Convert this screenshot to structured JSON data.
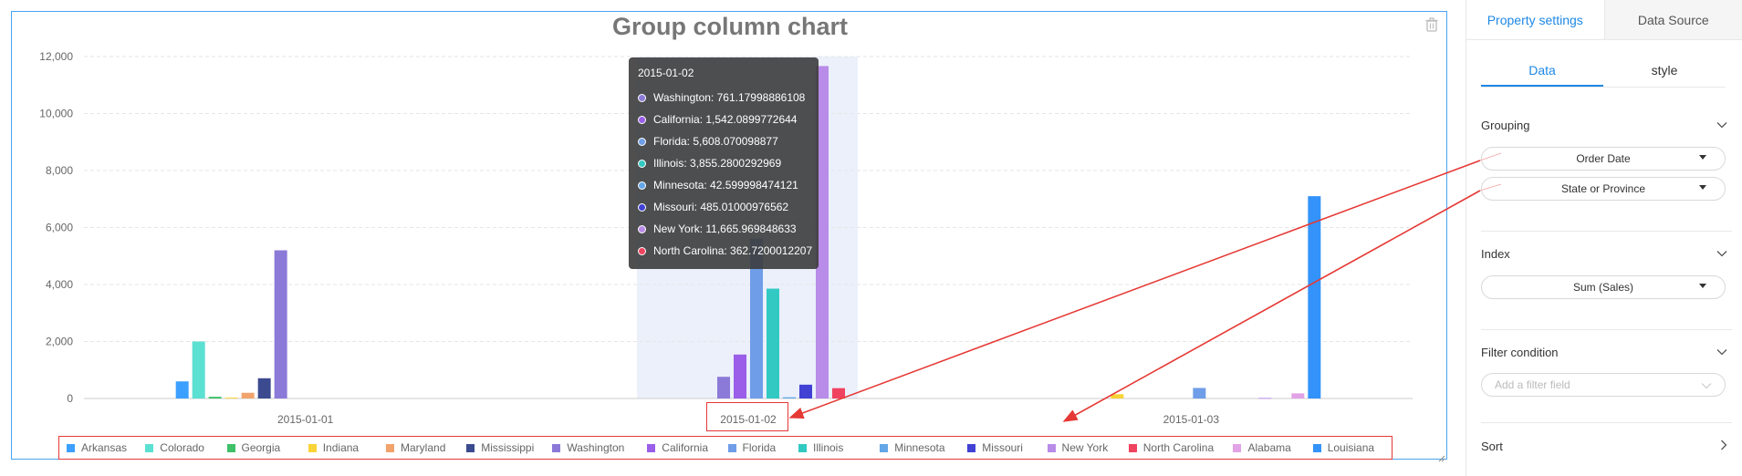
{
  "chart_data": {
    "type": "bar",
    "title": "Group column chart",
    "categories": [
      "2015-01-01",
      "2015-01-02",
      "2015-01-03"
    ],
    "ylim": [
      0,
      12000
    ],
    "yticks": [
      "0",
      "2,000",
      "4,000",
      "6,000",
      "8,000",
      "10,000",
      "12,000"
    ],
    "grid": true,
    "legend_position": "bottom",
    "series": [
      {
        "name": "Arkansas",
        "color": "#3ba0ff",
        "values": [
          600,
          0,
          0
        ]
      },
      {
        "name": "Colorado",
        "color": "#5ce0d2",
        "values": [
          2000,
          0,
          0
        ]
      },
      {
        "name": "Georgia",
        "color": "#3fc06a",
        "values": [
          60,
          0,
          0
        ]
      },
      {
        "name": "Indiana",
        "color": "#fad337",
        "values": [
          30,
          0,
          150
        ]
      },
      {
        "name": "Maryland",
        "color": "#f2a36b",
        "values": [
          200,
          0,
          0
        ]
      },
      {
        "name": "Mississippi",
        "color": "#3c4b8f",
        "values": [
          710,
          0,
          0
        ]
      },
      {
        "name": "Washington",
        "color": "#8b7ad8",
        "values": [
          5200,
          761.17998886108,
          0
        ]
      },
      {
        "name": "California",
        "color": "#9a5ee8",
        "values": [
          0,
          1542.0899772644,
          0
        ]
      },
      {
        "name": "Florida",
        "color": "#6f9de8",
        "values": [
          0,
          5608.070098877,
          370
        ]
      },
      {
        "name": "Illinois",
        "color": "#32c9c2",
        "values": [
          0,
          3855.2800292969,
          0
        ]
      },
      {
        "name": "Minnesota",
        "color": "#63a7e8",
        "values": [
          0,
          42.599998474121,
          0
        ]
      },
      {
        "name": "Missouri",
        "color": "#4141d4",
        "values": [
          0,
          485.01000976562,
          0
        ]
      },
      {
        "name": "New York",
        "color": "#b88ce8",
        "values": [
          0,
          11665.969848633,
          20
        ]
      },
      {
        "name": "North Carolina",
        "color": "#f0435f",
        "values": [
          0,
          362.7200012207,
          0
        ]
      },
      {
        "name": "Alabama",
        "color": "#e2a3e6",
        "values": [
          0,
          0,
          180
        ]
      },
      {
        "name": "Louisiana",
        "color": "#3393fa",
        "values": [
          0,
          0,
          7100
        ]
      }
    ],
    "tooltip": {
      "title": "2015-01-02",
      "rows": [
        {
          "label": "Washington: 761.17998886108",
          "color": "#8b7ad8"
        },
        {
          "label": "California: 1,542.0899772644",
          "color": "#9a5ee8"
        },
        {
          "label": "Florida: 5,608.070098877",
          "color": "#6f9de8"
        },
        {
          "label": "Illinois: 3,855.2800292969",
          "color": "#32c9c2"
        },
        {
          "label": "Minnesota: 42.599998474121",
          "color": "#63a7e8"
        },
        {
          "label": "Missouri: 485.01000976562",
          "color": "#4141d4"
        },
        {
          "label": "New York: 11,665.969848633",
          "color": "#b88ce8"
        },
        {
          "label": "North Carolina: 362.7200012207",
          "color": "#f0435f"
        }
      ]
    }
  },
  "panel": {
    "tabs": [
      "Property settings",
      "Data Source"
    ],
    "subtabs": [
      "Data",
      "style"
    ],
    "grouping": {
      "label": "Grouping",
      "fields": [
        "Order Date",
        "State or Province"
      ]
    },
    "index": {
      "label": "Index",
      "fields": [
        "Sum (Sales)"
      ]
    },
    "filter": {
      "label": "Filter condition",
      "placeholder": "Add a filter field"
    },
    "sort": {
      "label": "Sort"
    }
  },
  "icons": {
    "delete": "trash-icon",
    "expand": "chevron-down-icon",
    "next": "chevron-right-icon"
  },
  "colors": {
    "accent": "#1e88e5",
    "frame": "#4aa3f0",
    "annotation": "#e53935"
  }
}
